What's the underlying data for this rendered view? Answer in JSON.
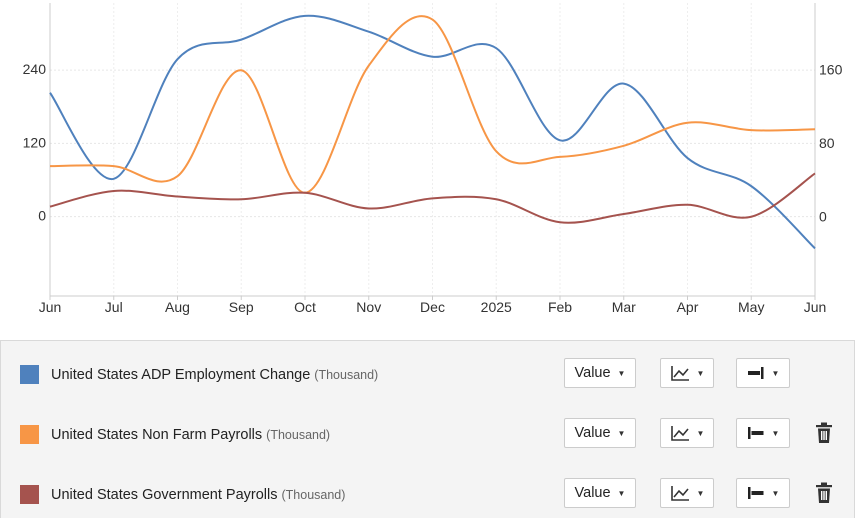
{
  "chart_data": {
    "type": "line",
    "x": [
      "Jun",
      "Jul",
      "Aug",
      "Sep",
      "Oct",
      "Nov",
      "Dec",
      "2025",
      "Feb",
      "Mar",
      "Apr",
      "May",
      "Jun"
    ],
    "y_left_ticks": [
      "0",
      "120",
      "240"
    ],
    "y_right_ticks": [
      "0",
      "80",
      "160"
    ],
    "y_left_range": [
      -130,
      350
    ],
    "y_right_range": [
      -85,
      233
    ],
    "grid": true,
    "series": [
      {
        "name": "United States ADP Employment Change",
        "unit": "(Thousand)",
        "axis": "left",
        "color": "#4f81bd",
        "values": [
          203,
          62,
          258,
          290,
          329,
          303,
          262,
          276,
          125,
          218,
          96,
          50,
          -52
        ]
      },
      {
        "name": "United States Non Farm Payrolls",
        "unit": "(Thousand)",
        "axis": "right",
        "color": "#f79646",
        "values": [
          56,
          56,
          45,
          160,
          27,
          165,
          215,
          72,
          66,
          78,
          103,
          95,
          96
        ]
      },
      {
        "name": "United States Government Payrolls",
        "unit": "(Thousand)",
        "axis": "right",
        "color": "#a5534e",
        "values": [
          12,
          29,
          23,
          20,
          27,
          10,
          21,
          20,
          -5,
          4,
          14,
          1,
          48
        ]
      }
    ]
  },
  "legend": {
    "value_label": "Value",
    "icons": {
      "chart_type": "line-chart-icon",
      "axis": "axis-side-icon",
      "delete": "trash-icon"
    }
  }
}
